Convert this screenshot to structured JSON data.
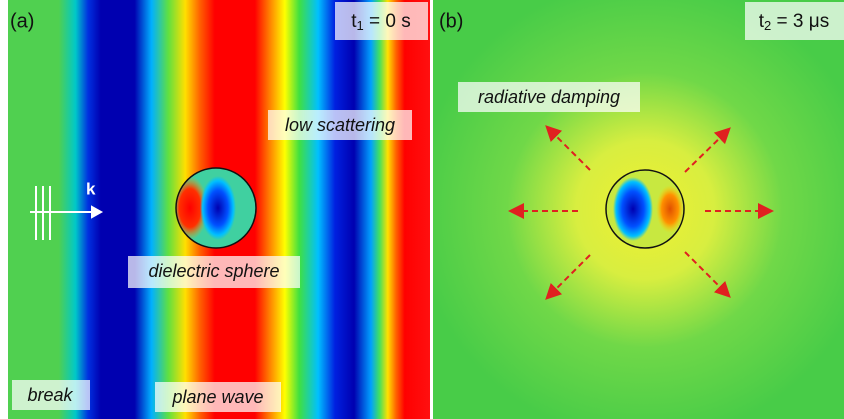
{
  "panels": [
    {
      "label": "(a)",
      "time": {
        "symbol": "t",
        "sub": "1",
        "rest": " = 0 s"
      },
      "wave_label": "k",
      "annotations": [
        "low scattering",
        "dielectric sphere",
        "break",
        "plane wave"
      ]
    },
    {
      "label": "(b)",
      "time": {
        "symbol": "t",
        "sub": "2",
        "rest": " = 3 μs"
      },
      "annotations": [
        "radiative damping"
      ]
    }
  ]
}
